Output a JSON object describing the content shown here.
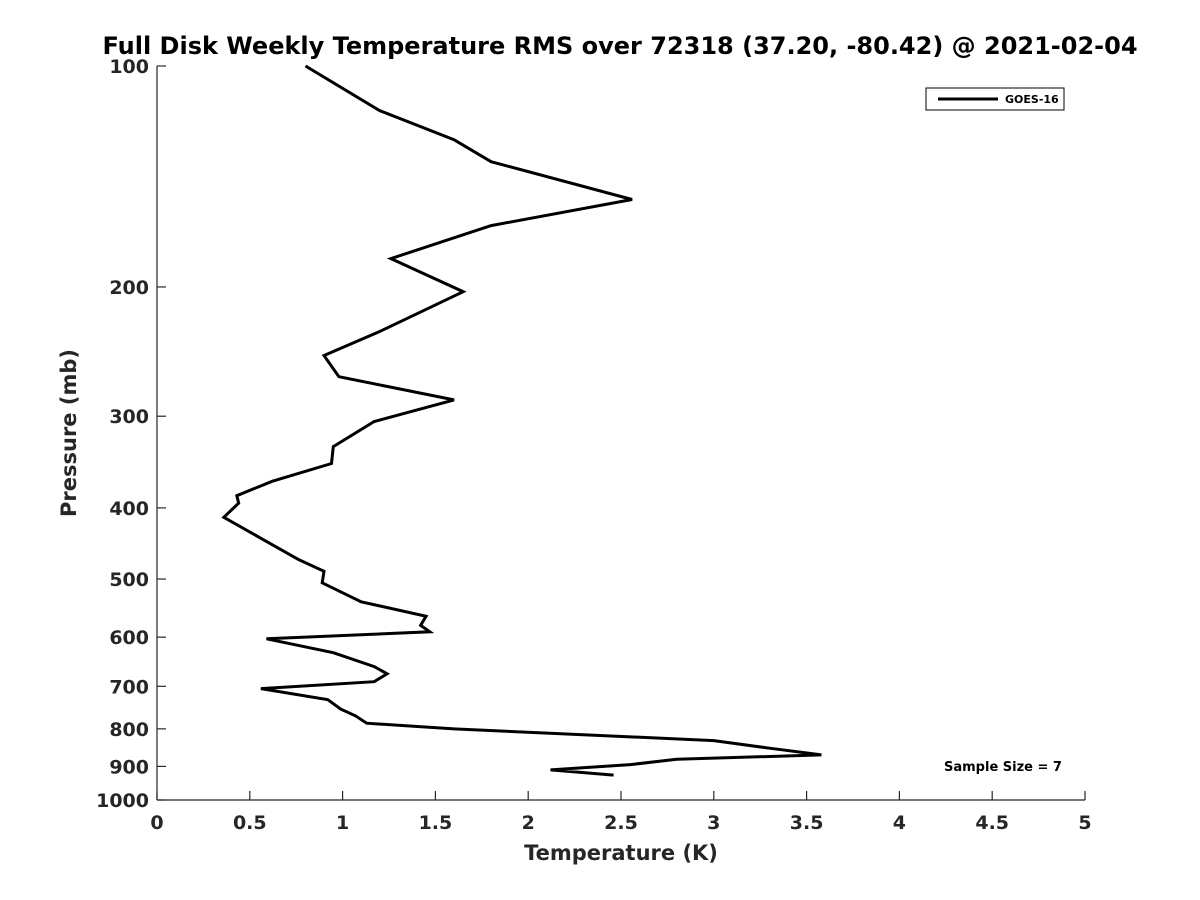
{
  "chart_data": {
    "type": "line",
    "title": "Full Disk Weekly Temperature RMS over 72318 (37.20, -80.42) @ 2021-02-04",
    "xlabel": "Temperature (K)",
    "ylabel": "Pressure (mb)",
    "xlim": [
      0,
      5
    ],
    "ylim": [
      100,
      1000
    ],
    "y_scale": "log",
    "y_reversed": true,
    "grid": false,
    "legend_position": "top-right",
    "x_ticks": [
      "0",
      "0.5",
      "1",
      "1.5",
      "2",
      "2.5",
      "3",
      "3.5",
      "4",
      "4.5",
      "5"
    ],
    "y_ticks": [
      "100",
      "200",
      "300",
      "400",
      "500",
      "600",
      "700",
      "800",
      "900",
      "1000"
    ],
    "series": [
      {
        "name": "GOES-16",
        "color": "#000000",
        "x": [
          0.8,
          1.2,
          1.6,
          1.8,
          2.56,
          1.8,
          1.26,
          1.65,
          1.2,
          0.9,
          0.98,
          1.6,
          1.17,
          0.95,
          0.94,
          0.62,
          0.43,
          0.44,
          0.36,
          0.56,
          0.76,
          0.9,
          0.89,
          1.1,
          1.45,
          1.42,
          1.47,
          0.59,
          0.95,
          1.17,
          1.24,
          1.17,
          0.56,
          0.92,
          0.99,
          1.07,
          1.13,
          1.6,
          3.0,
          3.3,
          3.58,
          2.8,
          2.55,
          2.12,
          2.46
        ],
        "y": [
          100,
          115,
          126,
          135,
          152,
          165,
          183,
          203,
          230,
          248,
          265,
          285,
          305,
          330,
          348,
          368,
          385,
          394,
          412,
          440,
          470,
          488,
          506,
          537,
          562,
          578,
          590,
          603,
          630,
          658,
          673,
          690,
          705,
          730,
          752,
          768,
          786,
          800,
          830,
          850,
          868,
          880,
          895,
          910,
          925
        ]
      }
    ],
    "annotations": [
      "Sample Size = 7"
    ]
  }
}
